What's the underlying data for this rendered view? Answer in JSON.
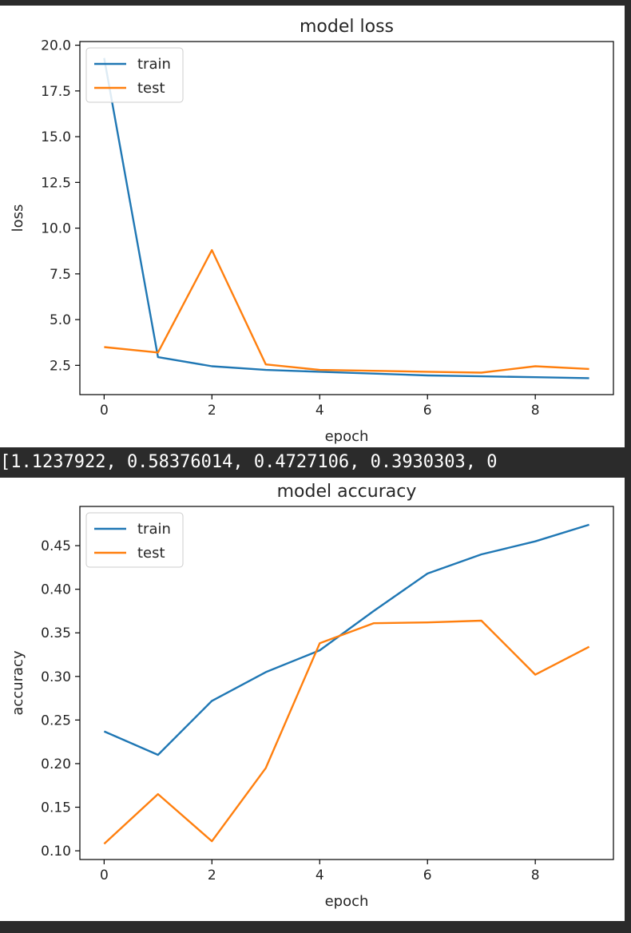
{
  "output_text": "[1.1237922, 0.58376014, 0.4727106, 0.3930303, 0",
  "chart_data": [
    {
      "type": "line",
      "title": "model loss",
      "xlabel": "epoch",
      "ylabel": "loss",
      "x": [
        0,
        1,
        2,
        3,
        4,
        5,
        6,
        7,
        8,
        9
      ],
      "xlim": [
        -0.45,
        9.45
      ],
      "ylim": [
        0.9,
        20.2
      ],
      "xticks": [
        0,
        2,
        4,
        6,
        8
      ],
      "xtick_labels": [
        "0",
        "2",
        "4",
        "6",
        "8"
      ],
      "yticks": [
        2.5,
        5.0,
        7.5,
        10.0,
        12.5,
        15.0,
        17.5,
        20.0
      ],
      "ytick_labels": [
        "2.5",
        "5.0",
        "7.5",
        "10.0",
        "12.5",
        "15.0",
        "17.5",
        "20.0"
      ],
      "grid": false,
      "legend": "top-left",
      "series": [
        {
          "name": "train",
          "color": "#1f77b4",
          "values": [
            19.3,
            2.95,
            2.45,
            2.25,
            2.15,
            2.05,
            1.95,
            1.9,
            1.85,
            1.8
          ]
        },
        {
          "name": "test",
          "color": "#ff7f0e",
          "values": [
            3.5,
            3.2,
            8.8,
            2.55,
            2.25,
            2.2,
            2.15,
            2.1,
            2.45,
            2.3
          ]
        }
      ]
    },
    {
      "type": "line",
      "title": "model accuracy",
      "xlabel": "epoch",
      "ylabel": "accuracy",
      "x": [
        0,
        1,
        2,
        3,
        4,
        5,
        6,
        7,
        8,
        9
      ],
      "xlim": [
        -0.45,
        9.45
      ],
      "ylim": [
        0.09,
        0.495
      ],
      "xticks": [
        0,
        2,
        4,
        6,
        8
      ],
      "xtick_labels": [
        "0",
        "2",
        "4",
        "6",
        "8"
      ],
      "yticks": [
        0.1,
        0.15,
        0.2,
        0.25,
        0.3,
        0.35,
        0.4,
        0.45
      ],
      "ytick_labels": [
        "0.10",
        "0.15",
        "0.20",
        "0.25",
        "0.30",
        "0.35",
        "0.40",
        "0.45"
      ],
      "grid": false,
      "legend": "top-left",
      "series": [
        {
          "name": "train",
          "color": "#1f77b4",
          "values": [
            0.237,
            0.21,
            0.272,
            0.305,
            0.33,
            0.375,
            0.418,
            0.44,
            0.455,
            0.474
          ]
        },
        {
          "name": "test",
          "color": "#ff7f0e",
          "values": [
            0.108,
            0.165,
            0.111,
            0.195,
            0.338,
            0.361,
            0.362,
            0.364,
            0.302,
            0.334
          ]
        }
      ]
    }
  ]
}
